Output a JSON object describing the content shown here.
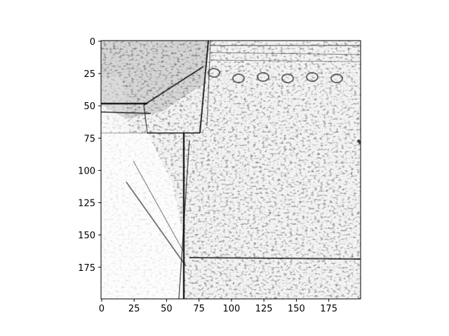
{
  "figure": {
    "image_description_icon": "grayscale-edge-map-image",
    "colormap": "gray_r",
    "background": "#ffffff",
    "ink": "#000000"
  },
  "axes": {
    "x_ticks": [
      0,
      25,
      50,
      75,
      100,
      125,
      150,
      175
    ],
    "y_ticks": [
      0,
      25,
      50,
      75,
      100,
      125,
      150,
      175
    ],
    "x_range": [
      0,
      200
    ],
    "y_range": [
      0,
      200
    ]
  }
}
